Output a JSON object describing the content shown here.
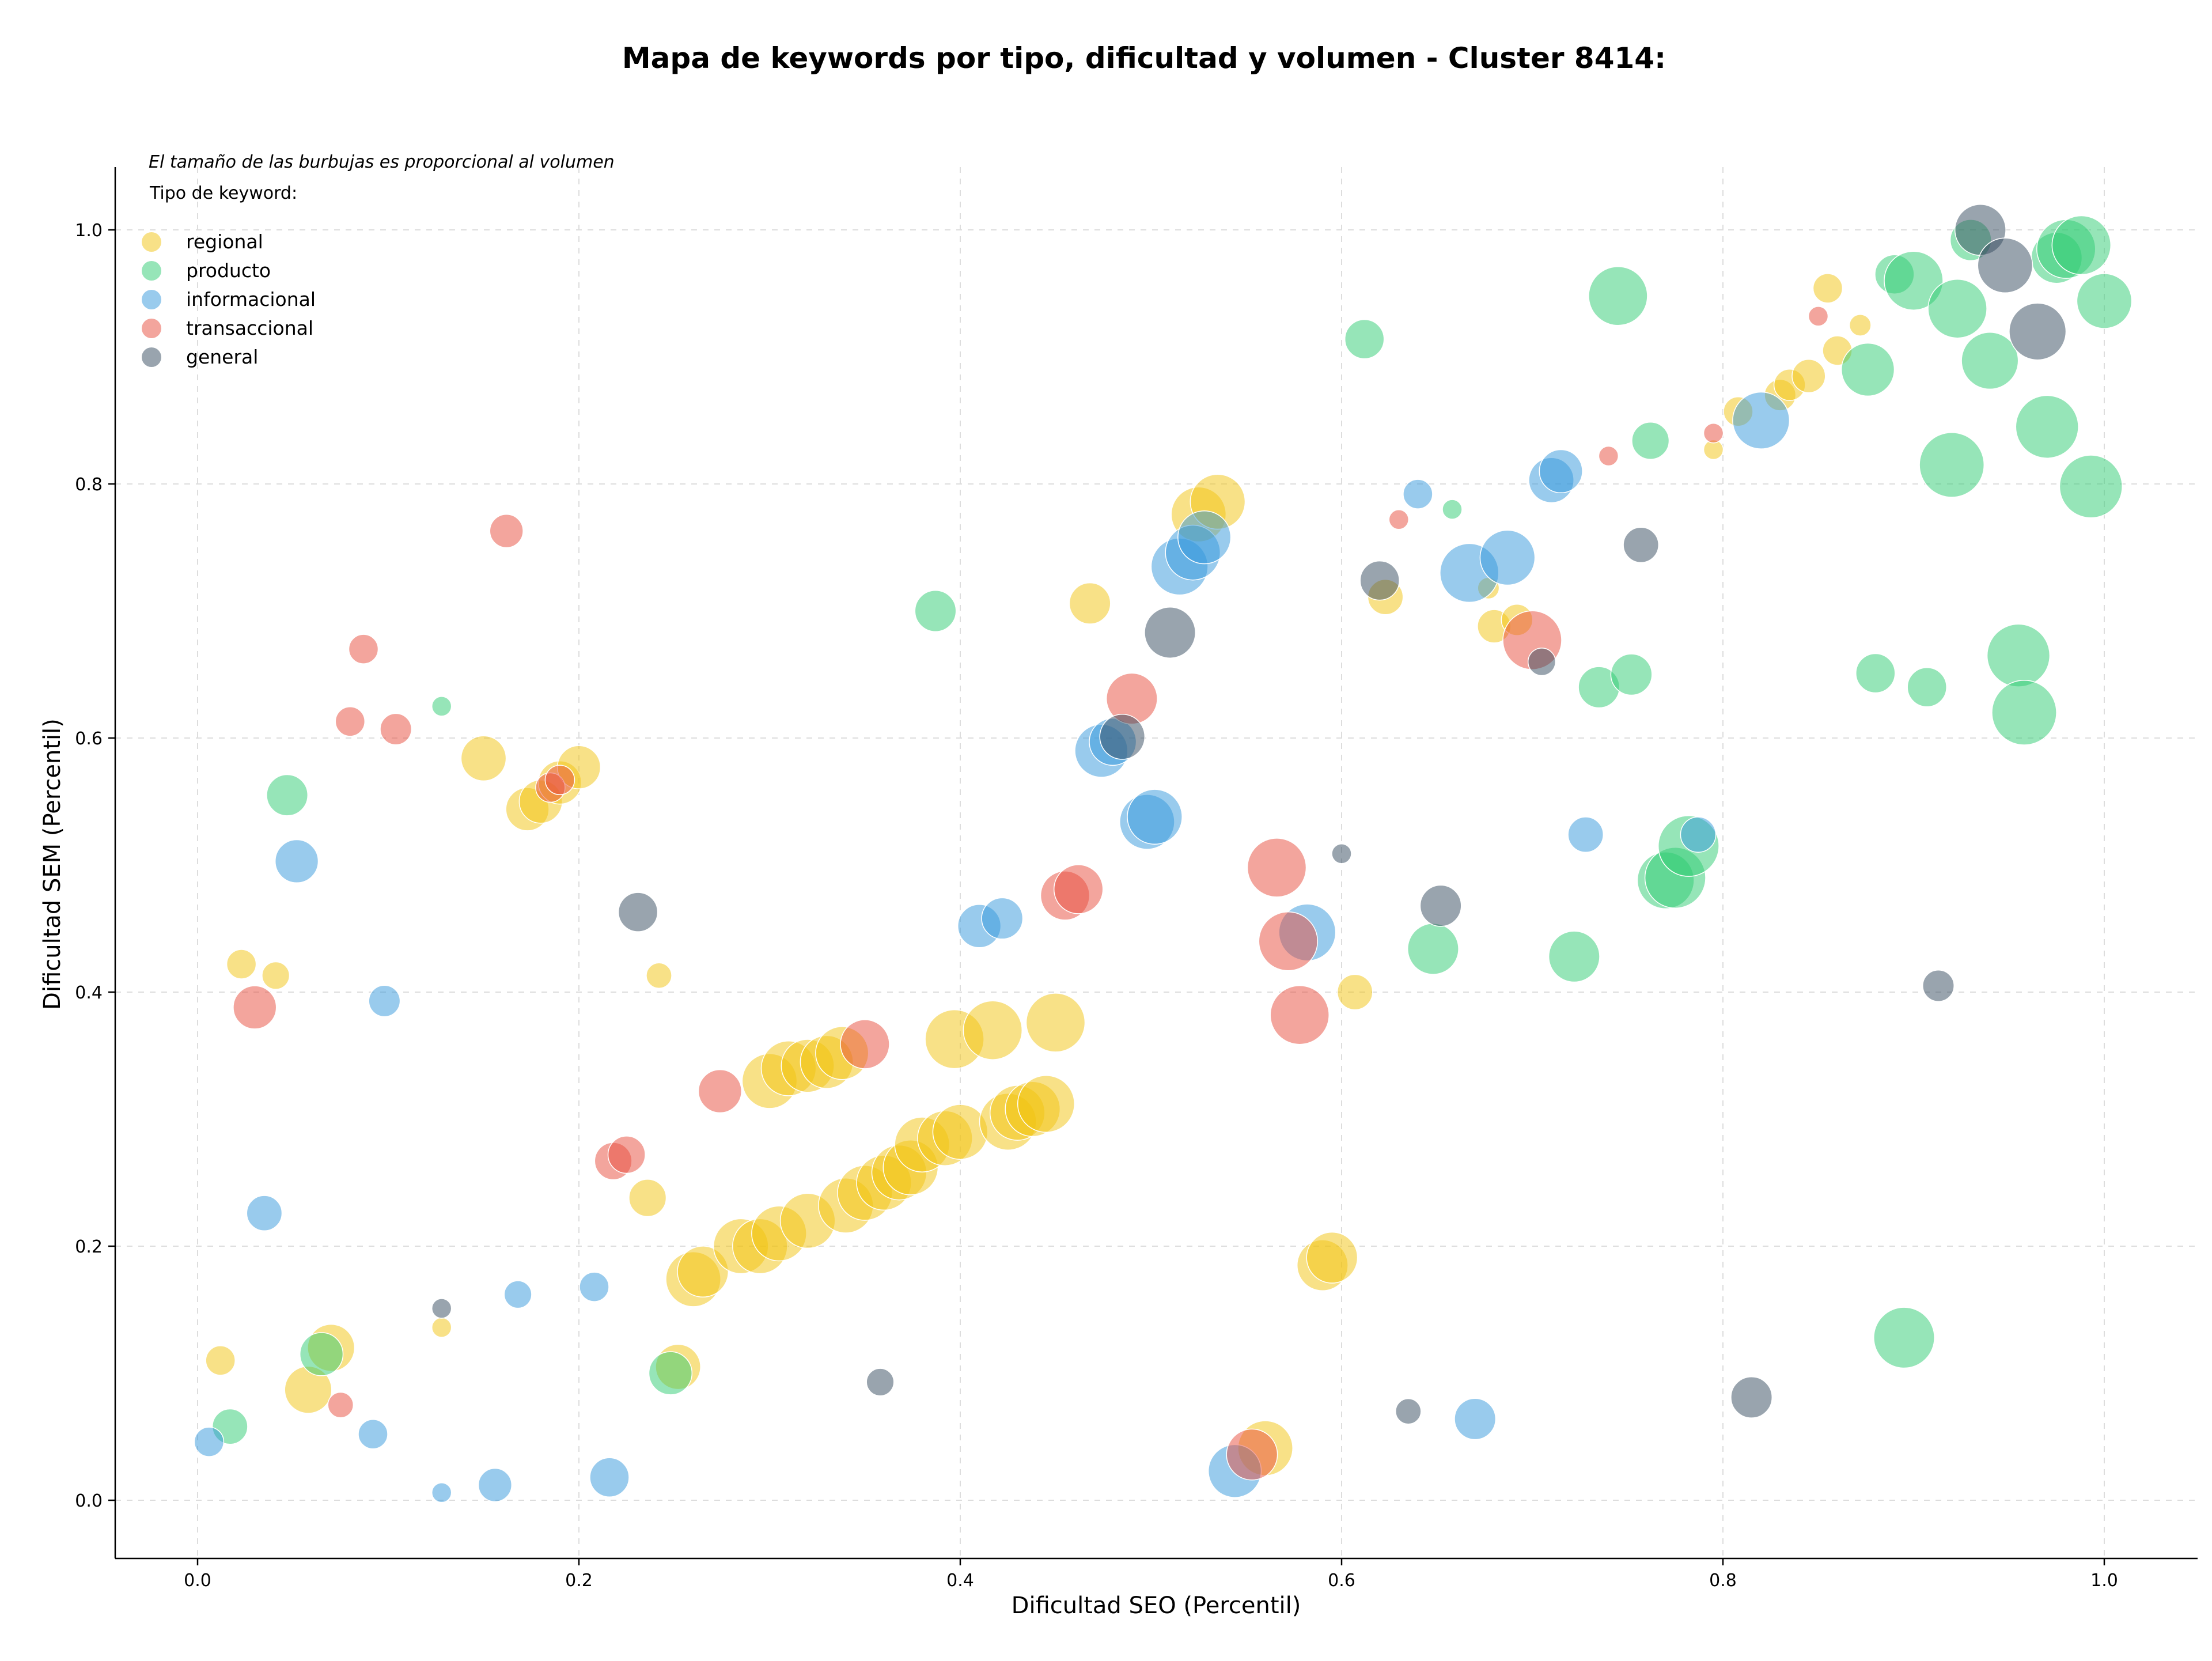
{
  "chart_data": {
    "type": "scatter",
    "title": "Mapa de keywords por tipo, dificultad y volumen - Cluster 8414:",
    "xlabel": "Dificultad SEO (Percentil)",
    "ylabel": "Dificultad SEM (Percentil)",
    "note": "El tamaño de las burbujas es proporcional al volumen",
    "legend_title": "Tipo de keyword:",
    "legend_position": "top-left",
    "grid": true,
    "xlim": [
      -0.043,
      1.05
    ],
    "ylim": [
      -0.043,
      1.05
    ],
    "xticks": [
      "0.0",
      "0.2",
      "0.4",
      "0.6",
      "0.8",
      "1.0"
    ],
    "yticks": [
      "0.0",
      "0.2",
      "0.4",
      "0.6",
      "0.8",
      "1.0"
    ],
    "size_scale": [
      1,
      5
    ],
    "series": [
      {
        "name": "regional",
        "color": "#f1c40f",
        "points": [
          [
            0.012,
            0.11,
            1.5
          ],
          [
            0.023,
            0.422,
            1.5
          ],
          [
            0.041,
            0.413,
            1.4
          ],
          [
            0.058,
            0.087,
            2.4
          ],
          [
            0.07,
            0.12,
            2.4
          ],
          [
            0.128,
            0.136,
            1
          ],
          [
            0.15,
            0.584,
            2.3
          ],
          [
            0.173,
            0.544,
            2.2
          ],
          [
            0.18,
            0.55,
            2.2
          ],
          [
            0.19,
            0.565,
            2.2
          ],
          [
            0.2,
            0.577,
            2.2
          ],
          [
            0.236,
            0.238,
            1.9
          ],
          [
            0.242,
            0.413,
            1.3
          ],
          [
            0.252,
            0.105,
            2.3
          ],
          [
            0.26,
            0.174,
            2.8
          ],
          [
            0.265,
            0.18,
            2.6
          ],
          [
            0.285,
            0.2,
            2.8
          ],
          [
            0.295,
            0.2,
            2.8
          ],
          [
            0.305,
            0.21,
            2.8
          ],
          [
            0.3,
            0.33,
            2.8
          ],
          [
            0.31,
            0.34,
            2.8
          ],
          [
            0.32,
            0.22,
            2.8
          ],
          [
            0.32,
            0.342,
            2.7
          ],
          [
            0.33,
            0.345,
            2.7
          ],
          [
            0.338,
            0.352,
            2.7
          ],
          [
            0.34,
            0.232,
            2.8
          ],
          [
            0.35,
            0.242,
            2.8
          ],
          [
            0.36,
            0.25,
            2.8
          ],
          [
            0.368,
            0.258,
            2.8
          ],
          [
            0.374,
            0.262,
            2.8
          ],
          [
            0.38,
            0.28,
            2.8
          ],
          [
            0.392,
            0.285,
            2.8
          ],
          [
            0.4,
            0.29,
            2.8
          ],
          [
            0.397,
            0.363,
            3
          ],
          [
            0.417,
            0.37,
            3
          ],
          [
            0.425,
            0.298,
            2.9
          ],
          [
            0.43,
            0.305,
            2.8
          ],
          [
            0.438,
            0.308,
            2.8
          ],
          [
            0.445,
            0.312,
            2.9
          ],
          [
            0.45,
            0.376,
            3
          ],
          [
            0.468,
            0.706,
            2.1
          ],
          [
            0.525,
            0.776,
            2.8
          ],
          [
            0.535,
            0.786,
            2.8
          ],
          [
            0.56,
            0.041,
            2.8
          ],
          [
            0.59,
            0.185,
            2.6
          ],
          [
            0.595,
            0.191,
            2.6
          ],
          [
            0.607,
            0.4,
            1.8
          ],
          [
            0.623,
            0.711,
            1.8
          ],
          [
            0.68,
            0.688,
            1.7
          ],
          [
            0.692,
            0.693,
            1.6
          ],
          [
            0.808,
            0.857,
            1.5
          ],
          [
            0.795,
            0.827,
            1
          ],
          [
            0.83,
            0.87,
            1.6
          ],
          [
            0.835,
            0.878,
            1.6
          ],
          [
            0.845,
            0.885,
            1.7
          ],
          [
            0.86,
            0.905,
            1.5
          ],
          [
            0.855,
            0.954,
            1.5
          ],
          [
            0.872,
            0.925,
            1.1
          ],
          [
            0.677,
            0.718,
            1.1
          ]
        ]
      },
      {
        "name": "producto",
        "color": "#2ecc71",
        "points": [
          [
            0.017,
            0.058,
            1.8
          ],
          [
            0.047,
            0.555,
            2.1
          ],
          [
            0.065,
            0.115,
            2.2
          ],
          [
            0.128,
            0.625,
            1
          ],
          [
            0.248,
            0.1,
            2.2
          ],
          [
            0.387,
            0.7,
            2.1
          ],
          [
            0.612,
            0.914,
            2
          ],
          [
            0.648,
            0.434,
            2.6
          ],
          [
            0.658,
            0.78,
            1
          ],
          [
            0.722,
            0.428,
            2.6
          ],
          [
            0.735,
            0.64,
            2.1
          ],
          [
            0.745,
            0.948,
            3
          ],
          [
            0.752,
            0.65,
            2.1
          ],
          [
            0.762,
            0.834,
            1.9
          ],
          [
            0.77,
            0.488,
            2.9
          ],
          [
            0.775,
            0.49,
            3.1
          ],
          [
            0.782,
            0.515,
            3.1
          ],
          [
            0.876,
            0.89,
            2.7
          ],
          [
            0.88,
            0.651,
            2
          ],
          [
            0.89,
            0.965,
            2
          ],
          [
            0.895,
            0.128,
            3.1
          ],
          [
            0.9,
            0.96,
            3
          ],
          [
            0.907,
            0.64,
            2
          ],
          [
            0.92,
            0.815,
            3.3
          ],
          [
            0.923,
            0.938,
            3
          ],
          [
            0.93,
            0.992,
            2.1
          ],
          [
            0.94,
            0.897,
            2.9
          ],
          [
            0.955,
            0.665,
            3.2
          ],
          [
            0.958,
            0.62,
            3.3
          ],
          [
            0.97,
            0.845,
            3.2
          ],
          [
            0.975,
            0.978,
            2.6
          ],
          [
            0.98,
            0.985,
            3
          ],
          [
            0.988,
            0.988,
            3
          ],
          [
            0.993,
            0.798,
            3.2
          ],
          [
            1,
            0.944,
            2.8
          ]
        ]
      },
      {
        "name": "informacional",
        "color": "#3498db",
        "points": [
          [
            0.006,
            0.046,
            1.5
          ],
          [
            0.035,
            0.226,
            1.8
          ],
          [
            0.052,
            0.503,
            2.2
          ],
          [
            0.098,
            0.393,
            1.6
          ],
          [
            0.092,
            0.052,
            1.5
          ],
          [
            0.128,
            0.006,
            1
          ],
          [
            0.156,
            0.012,
            1.7
          ],
          [
            0.168,
            0.162,
            1.4
          ],
          [
            0.208,
            0.168,
            1.5
          ],
          [
            0.216,
            0.018,
            2
          ],
          [
            0.41,
            0.452,
            2.2
          ],
          [
            0.422,
            0.458,
            2.1
          ],
          [
            0.474,
            0.59,
            2.7
          ],
          [
            0.48,
            0.597,
            2.4
          ],
          [
            0.498,
            0.534,
            2.8
          ],
          [
            0.502,
            0.538,
            2.8
          ],
          [
            0.515,
            0.735,
            2.9
          ],
          [
            0.522,
            0.746,
            2.8
          ],
          [
            0.528,
            0.758,
            2.7
          ],
          [
            0.544,
            0.023,
            2.7
          ],
          [
            0.582,
            0.447,
            2.9
          ],
          [
            0.64,
            0.792,
            1.5
          ],
          [
            0.667,
            0.73,
            3
          ],
          [
            0.687,
            0.742,
            2.8
          ],
          [
            0.71,
            0.803,
            2.3
          ],
          [
            0.715,
            0.81,
            2.2
          ],
          [
            0.728,
            0.524,
            1.8
          ],
          [
            0.787,
            0.524,
            1.8
          ],
          [
            0.82,
            0.85,
            2.9
          ],
          [
            0.67,
            0.064,
            2.1
          ]
        ]
      },
      {
        "name": "transaccional",
        "color": "#e74c3c",
        "points": [
          [
            0.03,
            0.388,
            2.2
          ],
          [
            0.075,
            0.075,
            1.3
          ],
          [
            0.08,
            0.613,
            1.5
          ],
          [
            0.087,
            0.67,
            1.5
          ],
          [
            0.104,
            0.607,
            1.6
          ],
          [
            0.162,
            0.763,
            1.7
          ],
          [
            0.185,
            0.561,
            1.5
          ],
          [
            0.19,
            0.567,
            1.5
          ],
          [
            0.218,
            0.267,
            1.9
          ],
          [
            0.225,
            0.272,
            1.9
          ],
          [
            0.274,
            0.322,
            2.2
          ],
          [
            0.35,
            0.359,
            2.5
          ],
          [
            0.455,
            0.476,
            2.5
          ],
          [
            0.462,
            0.481,
            2.5
          ],
          [
            0.49,
            0.631,
            2.6
          ],
          [
            0.553,
            0.036,
            2.6
          ],
          [
            0.566,
            0.498,
            3
          ],
          [
            0.572,
            0.44,
            3
          ],
          [
            0.578,
            0.382,
            3
          ],
          [
            0.63,
            0.772,
            1
          ],
          [
            0.7,
            0.677,
            3
          ],
          [
            0.74,
            0.822,
            1
          ],
          [
            0.795,
            0.84,
            1
          ],
          [
            0.85,
            0.932,
            1
          ]
        ]
      },
      {
        "name": "general",
        "color": "#34495e",
        "points": [
          [
            0.128,
            0.151,
            1
          ],
          [
            0.231,
            0.463,
            2
          ],
          [
            0.358,
            0.093,
            1.4
          ],
          [
            0.485,
            0.601,
            2.3
          ],
          [
            0.51,
            0.683,
            2.6
          ],
          [
            0.6,
            0.509,
            1
          ],
          [
            0.62,
            0.724,
            2
          ],
          [
            0.635,
            0.07,
            1.3
          ],
          [
            0.652,
            0.468,
            2.1
          ],
          [
            0.705,
            0.66,
            1.4
          ],
          [
            0.757,
            0.752,
            1.8
          ],
          [
            0.815,
            0.081,
            2.1
          ],
          [
            0.913,
            0.405,
            1.6
          ],
          [
            0.935,
            1.0,
            2.6
          ],
          [
            0.948,
            0.972,
            2.8
          ],
          [
            0.965,
            0.92,
            2.9
          ]
        ]
      }
    ]
  }
}
